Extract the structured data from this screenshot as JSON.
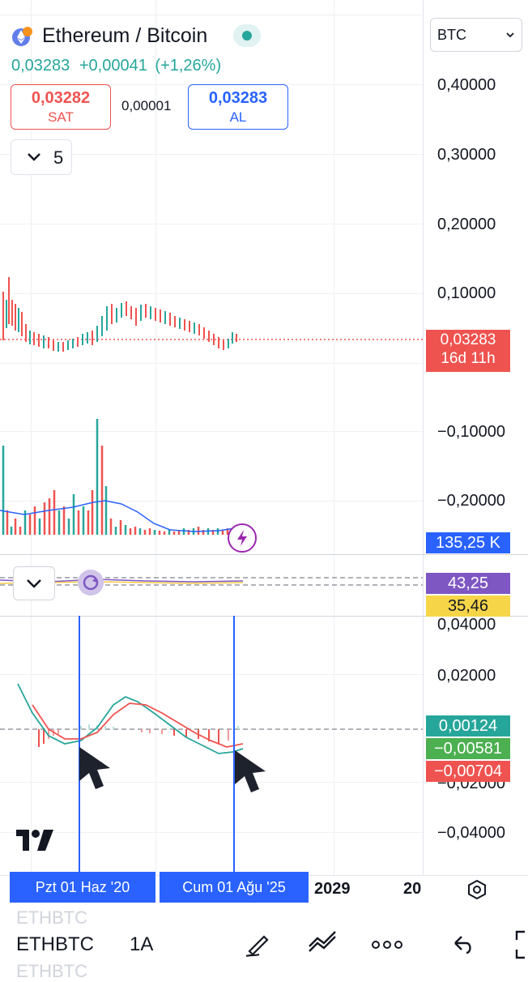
{
  "header": {
    "symbol_title": "Ethereum / Bitcoin",
    "price_line": "0,03283",
    "change_abs": "+0,00041",
    "change_pct": "(+1,26%)",
    "currency_select": "BTC",
    "colors": {
      "up": "#26a69a",
      "down": "#ef5350",
      "accent": "#2962ff"
    }
  },
  "trade": {
    "sell_price": "0,03282",
    "sell_label": "SAT",
    "spread": "0,00001",
    "buy_price": "0,03283",
    "buy_label": "AL"
  },
  "interval_dropdown": {
    "value": "5",
    "icon": "chevron-down-icon"
  },
  "main_axis": {
    "ticks": [
      "0,40000",
      "0,30000",
      "0,20000",
      "0,10000",
      "−0,10000",
      "−0,20000"
    ],
    "last_price": "0,03283",
    "countdown": "16d 11h",
    "volume_label": "135,25 K"
  },
  "rsi_pane": {
    "value_purple": "43,25",
    "value_yellow": "35,46"
  },
  "macd_pane": {
    "ticks": [
      "0,04000",
      "0,02000",
      "−0,02000",
      "−0,04000"
    ],
    "histogram": "0,00124",
    "macd": "−0,00581",
    "signal": "−0,00704"
  },
  "time_axis": {
    "cursor_1": "Pzt 01 Haz '20",
    "cursor_2": "Cum 01 Ağu '25",
    "tick_1": "2029",
    "tick_2": "20",
    "partial_tick": "2"
  },
  "bottom_bar": {
    "symbol": "ETHBTC",
    "ghost_symbol": "ETHBTC",
    "interval": "1A",
    "icons": [
      "pen-icon",
      "trendline-icon",
      "more-icon",
      "undo-icon",
      "fullscreen-icon"
    ]
  },
  "watermark_logo": "TV"
}
